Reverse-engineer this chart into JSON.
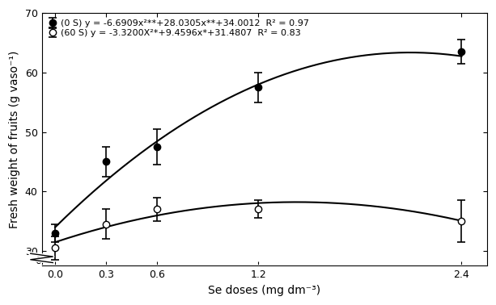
{
  "x_doses": [
    0.0,
    0.3,
    0.6,
    1.2,
    2.4
  ],
  "y_0S": [
    33.0,
    45.0,
    47.5,
    57.5,
    63.5
  ],
  "y_60S": [
    30.5,
    34.5,
    37.0,
    37.0,
    35.0
  ],
  "yerr_0S": [
    1.5,
    2.5,
    3.0,
    2.5,
    2.0
  ],
  "yerr_60S": [
    2.0,
    2.5,
    2.0,
    1.5,
    3.5
  ],
  "eq_0S": "(0 S) y = -6.6909x²**+28.0305x**+34.0012  R² = 0.97",
  "eq_60S": "(60 S) y = -3.3200X²*+9.4596x*+31.4807  R² = 0.83",
  "xlabel": "Se doses (mg dm⁻³)",
  "ylabel": "Fresh weight of fruits (g vaso⁻¹)",
  "ylim_bottom": 27.5,
  "ylim_top": 70,
  "xlim_left": -0.08,
  "xlim_right": 2.55,
  "xticks": [
    0.0,
    0.3,
    0.6,
    1.2,
    2.4
  ],
  "yticks": [
    30,
    40,
    50,
    60,
    70
  ],
  "ytick_extra": 0,
  "background_color": "#ffffff",
  "a_0S": -6.6909,
  "b_0S": 28.0305,
  "c_0S": 34.0012,
  "a_60S": -3.32,
  "b_60S": 9.4596,
  "c_60S": 31.4807
}
